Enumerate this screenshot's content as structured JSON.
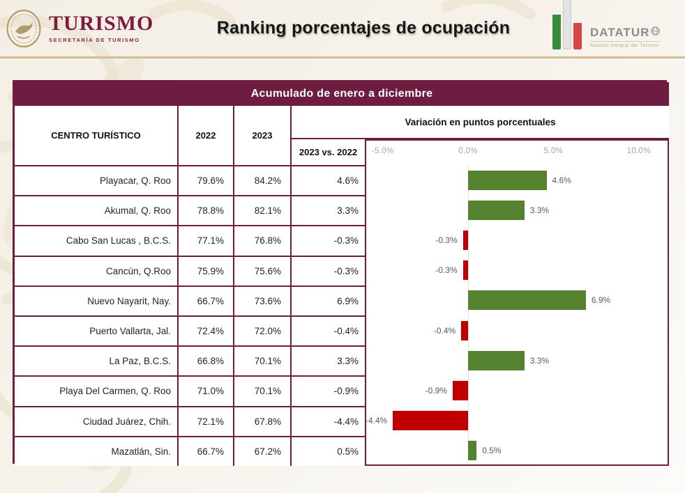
{
  "header": {
    "logo": {
      "title": "TURISMO",
      "subtitle": "SECRETARÍA DE TURISMO"
    },
    "page_title": "Ranking porcentajes de ocupación",
    "datatur": {
      "name": "DATATUR",
      "tagline": "Análisis Integral del Turismo"
    }
  },
  "table": {
    "banner": "Acumulado de enero a diciembre",
    "columns": {
      "center": "CENTRO TURÍSTICO",
      "y2022": "2022",
      "y2023": "2023",
      "variation_group": "Variación en puntos porcentuales",
      "variation": "2023 vs. 2022"
    },
    "rows": [
      {
        "name": "Playacar, Q. Roo",
        "y2022": "79.6%",
        "y2023": "84.2%",
        "var": "4.6%"
      },
      {
        "name": "Akumal, Q. Roo",
        "y2022": "78.8%",
        "y2023": "82.1%",
        "var": "3.3%"
      },
      {
        "name": "Cabo San Lucas , B.C.S.",
        "y2022": "77.1%",
        "y2023": "76.8%",
        "var": "-0.3%"
      },
      {
        "name": "Cancún, Q.Roo",
        "y2022": "75.9%",
        "y2023": "75.6%",
        "var": "-0.3%"
      },
      {
        "name": "Nuevo Nayarit, Nay.",
        "y2022": "66.7%",
        "y2023": "73.6%",
        "var": "6.9%"
      },
      {
        "name": "Puerto Vallarta, Jal.",
        "y2022": "72.4%",
        "y2023": "72.0%",
        "var": "-0.4%"
      },
      {
        "name": "La Paz, B.C.S.",
        "y2022": "66.8%",
        "y2023": "70.1%",
        "var": "3.3%"
      },
      {
        "name": "Playa Del Carmen, Q. Roo",
        "y2022": "71.0%",
        "y2023": "70.1%",
        "var": "-0.9%"
      },
      {
        "name": "Ciudad Juárez, Chih.",
        "y2022": "72.1%",
        "y2023": "67.8%",
        "var": "-4.4%"
      },
      {
        "name": "Mazatlán, Sin.",
        "y2022": "66.7%",
        "y2023": "67.2%",
        "var": "0.5%"
      }
    ]
  },
  "chart_data": {
    "type": "bar",
    "orientation": "horizontal",
    "title": "Variación en puntos porcentuales",
    "categories": [
      "Playacar, Q. Roo",
      "Akumal, Q. Roo",
      "Cabo San Lucas , B.C.S.",
      "Cancún, Q.Roo",
      "Nuevo Nayarit, Nay.",
      "Puerto Vallarta, Jal.",
      "La Paz, B.C.S.",
      "Playa Del Carmen, Q. Roo",
      "Ciudad Juárez, Chih.",
      "Mazatlán, Sin."
    ],
    "values": [
      4.6,
      3.3,
      -0.3,
      -0.3,
      6.9,
      -0.4,
      3.3,
      -0.9,
      -4.4,
      0.5
    ],
    "labels": [
      "4.6%",
      "3.3%",
      "-0.3%",
      "-0.3%",
      "6.9%",
      "-0.4%",
      "3.3%",
      "-0.9%",
      "-4.4%",
      "0.5%"
    ],
    "xlim": [
      -5,
      10
    ],
    "ticks": [
      {
        "value": -5,
        "label": "-5.0%"
      },
      {
        "value": 0,
        "label": "0.0%"
      },
      {
        "value": 5,
        "label": "5.0%"
      },
      {
        "value": 10,
        "label": "10.0%"
      }
    ],
    "grid": false,
    "legend": "none",
    "colors": {
      "positive": "#55822e",
      "negative": "#c00000"
    }
  }
}
